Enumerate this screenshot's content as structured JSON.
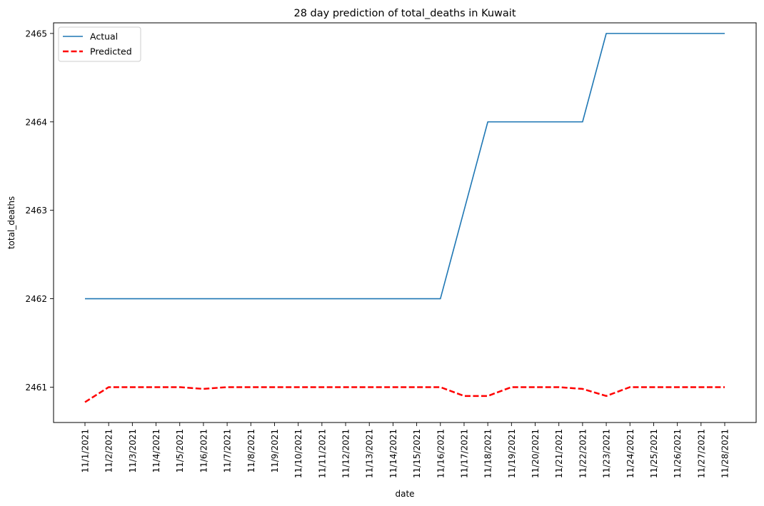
{
  "chart_data": {
    "type": "line",
    "title": "28 day prediction of total_deaths in Kuwait",
    "xlabel": "date",
    "ylabel": "total_deaths",
    "x": [
      "11/1/2021",
      "11/2/2021",
      "11/3/2021",
      "11/4/2021",
      "11/5/2021",
      "11/6/2021",
      "11/7/2021",
      "11/8/2021",
      "11/9/2021",
      "11/10/2021",
      "11/11/2021",
      "11/12/2021",
      "11/13/2021",
      "11/14/2021",
      "11/15/2021",
      "11/16/2021",
      "11/17/2021",
      "11/18/2021",
      "11/19/2021",
      "11/20/2021",
      "11/21/2021",
      "11/22/2021",
      "11/23/2021",
      "11/24/2021",
      "11/25/2021",
      "11/26/2021",
      "11/27/2021",
      "11/28/2021"
    ],
    "yticks": [
      2461,
      2462,
      2463,
      2464,
      2465
    ],
    "ylim": [
      2460.6,
      2465.12
    ],
    "grid": false,
    "legend": "top-left",
    "series": [
      {
        "name": "Actual",
        "color": "#1f77b4",
        "style": "solid",
        "values": [
          2462,
          2462,
          2462,
          2462,
          2462,
          2462,
          2462,
          2462,
          2462,
          2462,
          2462,
          2462,
          2462,
          2462,
          2462,
          2462,
          2463,
          2464,
          2464,
          2464,
          2464,
          2464,
          2465,
          2465,
          2465,
          2465,
          2465,
          2465
        ]
      },
      {
        "name": "Predicted",
        "color": "#ff0000",
        "style": "dashed",
        "values": [
          2460.83,
          2461,
          2461,
          2461,
          2461,
          2460.98,
          2461,
          2461,
          2461,
          2461,
          2461,
          2461,
          2461,
          2461,
          2461,
          2461,
          2460.9,
          2460.9,
          2461,
          2461,
          2461,
          2460.98,
          2460.9,
          2461,
          2461,
          2461,
          2461,
          2461
        ]
      }
    ]
  }
}
